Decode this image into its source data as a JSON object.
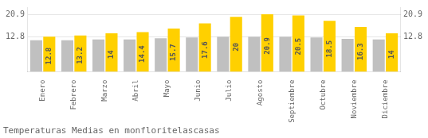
{
  "chart_data": {
    "type": "bar",
    "title": "Temperaturas Medias en monfloritelascasas",
    "categories": [
      "Enero",
      "Febrero",
      "Marzo",
      "Abril",
      "Mayo",
      "Junio",
      "Julio",
      "Agosto",
      "Septiembre",
      "Octubre",
      "Noviembre",
      "Diciembre"
    ],
    "series": [
      {
        "color": "#C0C0C0",
        "values": [
          11.5,
          11.5,
          11.8,
          11.8,
          12.2,
          12.5,
          12.8,
          12.8,
          12.8,
          12.5,
          12.0,
          11.8
        ]
      },
      {
        "color": "#FFD000",
        "values": [
          12.8,
          13.2,
          14.0,
          14.4,
          15.7,
          17.6,
          20.0,
          20.9,
          20.5,
          18.5,
          16.3,
          14.0
        ],
        "data_labels": true
      }
    ],
    "ylim": [
      0,
      23.5
    ],
    "yticks": [
      12.8,
      20.9
    ],
    "y2lim": [
      0,
      23.5
    ],
    "y2ticks": [
      12.8,
      20.9
    ],
    "grid": true
  }
}
